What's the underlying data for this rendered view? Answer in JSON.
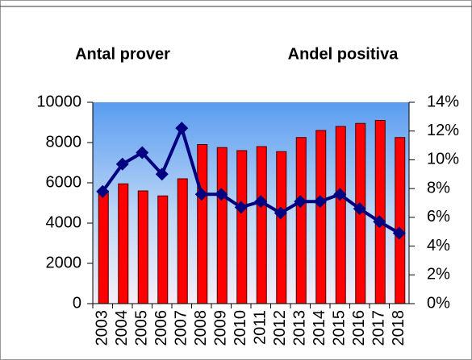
{
  "chart_data": {
    "type": "bar_line",
    "y_label": "Antal prover",
    "y2_label": "Andel positiva",
    "categories": [
      "2003",
      "2004",
      "2005",
      "2006",
      "2007",
      "2008",
      "2009",
      "2010",
      "2011",
      "2012",
      "2013",
      "2014",
      "2015",
      "2016",
      "2017",
      "2018"
    ],
    "series": [
      {
        "name": "Antal prover",
        "type": "bar",
        "color": "#ff0000",
        "values": [
          5600,
          5950,
          5600,
          5350,
          6200,
          7900,
          7750,
          7600,
          7800,
          7550,
          8250,
          8600,
          8800,
          8950,
          9100,
          8250
        ]
      },
      {
        "name": "Andel positiva",
        "type": "line",
        "axis": "y2",
        "color": "#000080",
        "values": [
          7.8,
          9.7,
          10.5,
          9.0,
          12.2,
          7.6,
          7.6,
          6.7,
          7.1,
          6.3,
          7.1,
          7.1,
          7.6,
          6.6,
          5.7,
          4.9
        ]
      }
    ],
    "ylim": [
      0,
      10000
    ],
    "yticks": [
      0,
      2000,
      4000,
      6000,
      8000,
      10000
    ],
    "y2lim": [
      0,
      14
    ],
    "y2ticks": [
      {
        "value": 0,
        "label": "0%"
      },
      {
        "value": 2,
        "label": "2%"
      },
      {
        "value": 4,
        "label": "4%"
      },
      {
        "value": 6,
        "label": "6%"
      },
      {
        "value": 8,
        "label": "8%"
      },
      {
        "value": 10,
        "label": "10%"
      },
      {
        "value": 12,
        "label": "12%"
      },
      {
        "value": 14,
        "label": "14%"
      }
    ],
    "grid": false
  }
}
